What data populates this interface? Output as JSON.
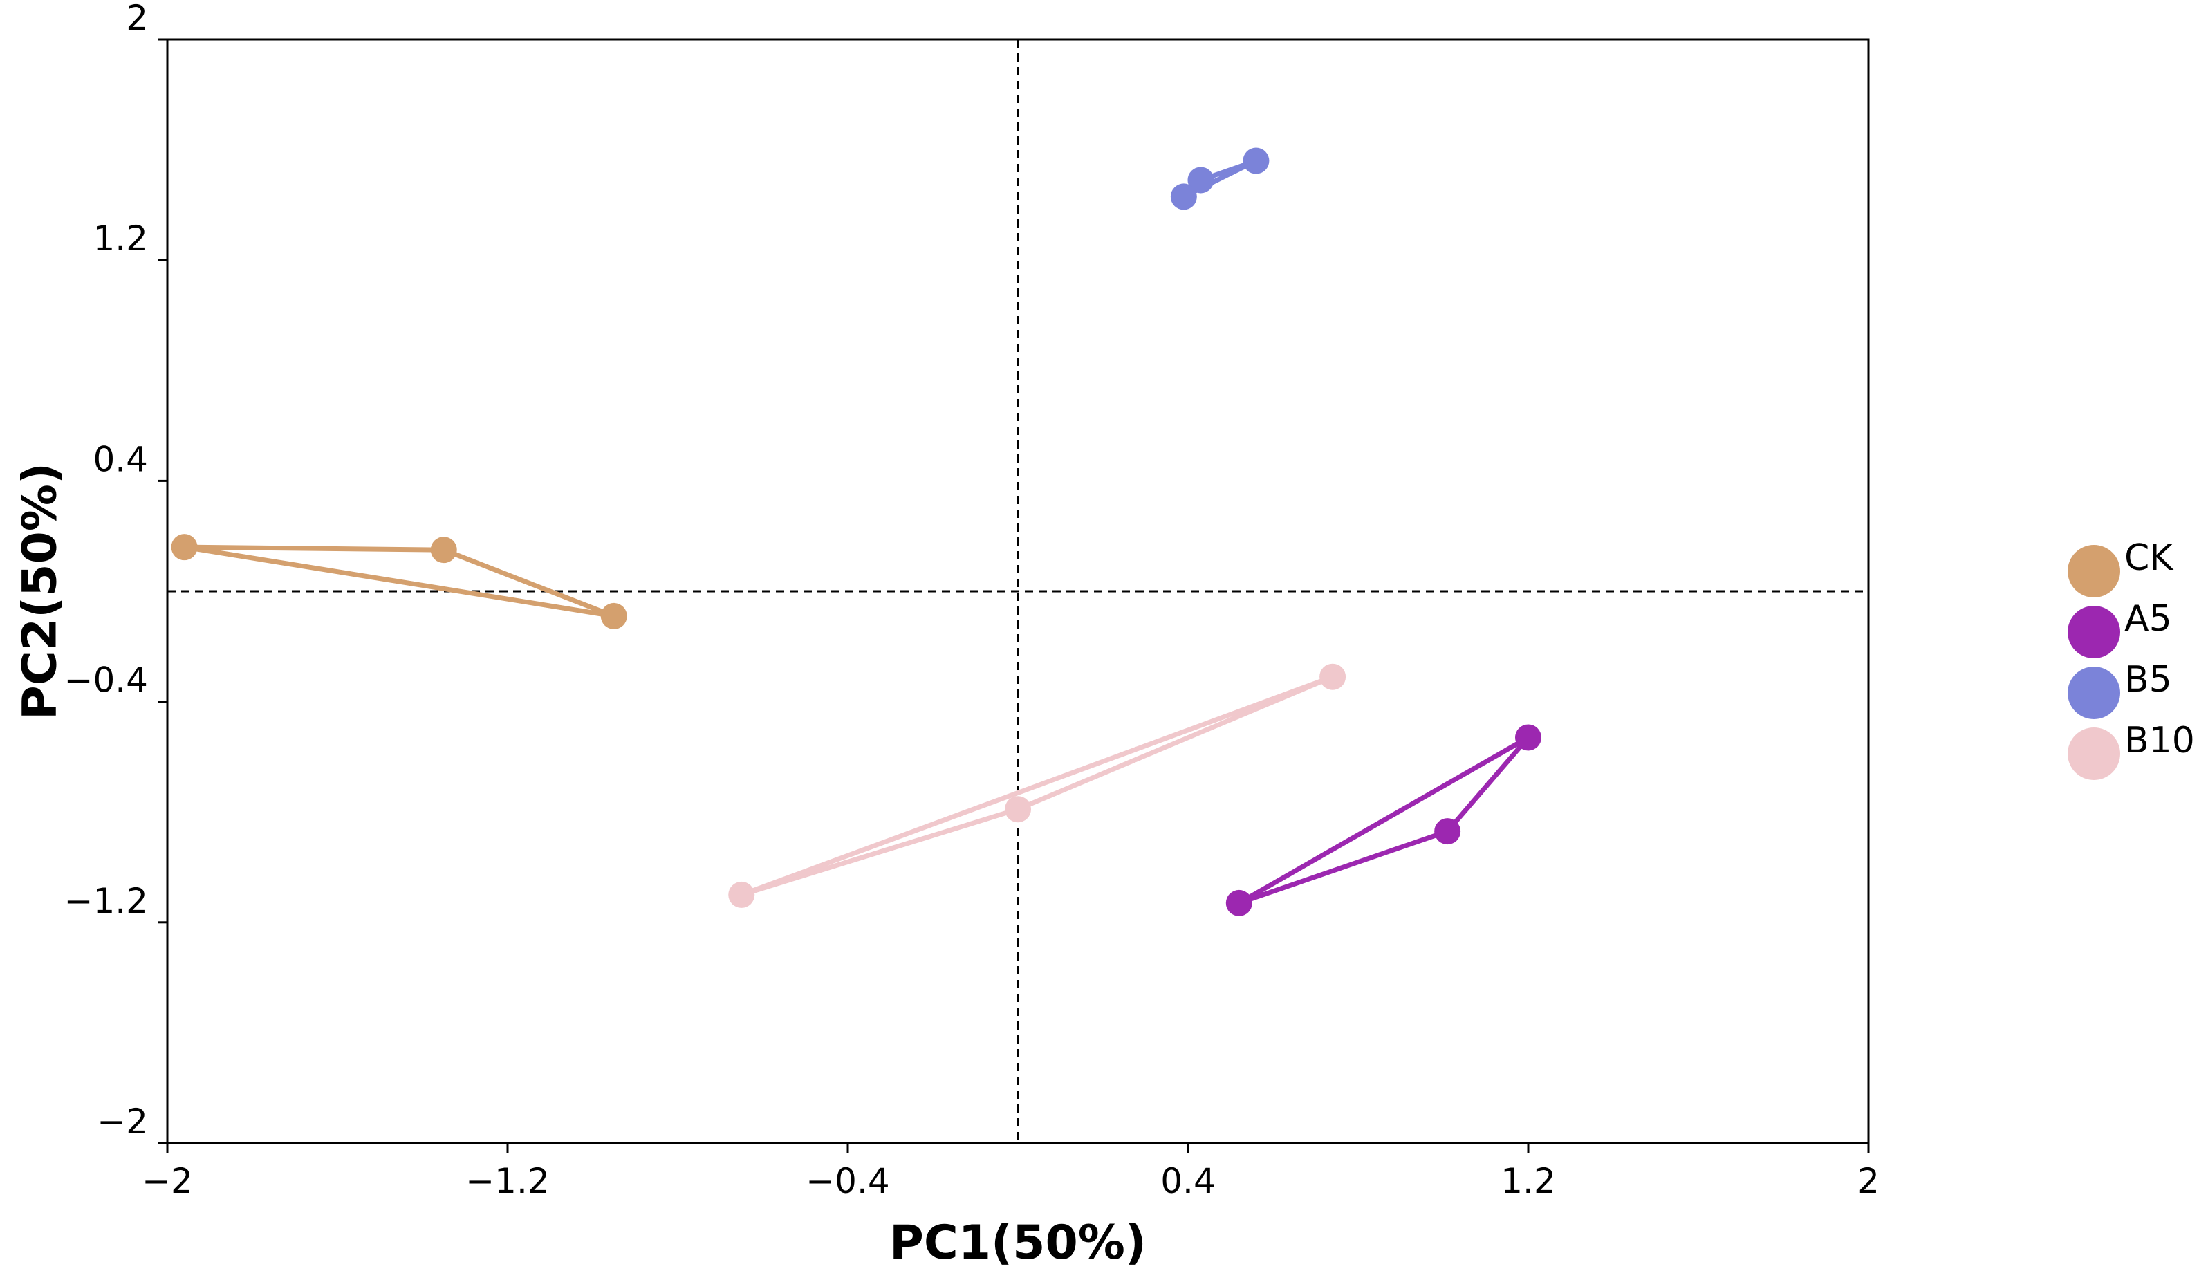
{
  "chart_data": {
    "type": "scatter",
    "title": "",
    "xlabel": "PC1(50%)",
    "ylabel": "PC2(50%)",
    "xlim": [
      -2,
      2
    ],
    "ylim": [
      -2,
      2
    ],
    "xticks": [
      -2,
      -1.2,
      -0.4,
      0.4,
      1.2,
      2
    ],
    "yticks": [
      -2,
      -1.2,
      -0.4,
      0.4,
      1.2,
      2
    ],
    "xtick_labels": [
      "−2",
      "−1.2",
      "−0.4",
      "0.4",
      "1.2",
      "2"
    ],
    "ytick_labels": [
      "−2",
      "−1.2",
      "−0.4",
      "0.4",
      "1.2",
      "2"
    ],
    "reference_lines": {
      "x": 0,
      "y": 0,
      "style": "dashed"
    },
    "grid": false,
    "legend_position": "right",
    "series": [
      {
        "name": "CK",
        "color": "#D4A06E",
        "points": [
          [
            -1.96,
            0.16
          ],
          [
            -1.35,
            0.15
          ],
          [
            -0.95,
            -0.09
          ]
        ]
      },
      {
        "name": "A5",
        "color": "#9C27B0",
        "points": [
          [
            1.2,
            -0.53
          ],
          [
            1.01,
            -0.87
          ],
          [
            0.52,
            -1.13
          ]
        ]
      },
      {
        "name": "B5",
        "color": "#7B83D9",
        "points": [
          [
            0.56,
            1.56
          ],
          [
            0.43,
            1.49
          ],
          [
            0.39,
            1.43
          ]
        ]
      },
      {
        "name": "B10",
        "color": "#F0C8CC",
        "points": [
          [
            0.74,
            -0.31
          ],
          [
            0.0,
            -0.79
          ],
          [
            -0.65,
            -1.1
          ]
        ]
      }
    ]
  }
}
